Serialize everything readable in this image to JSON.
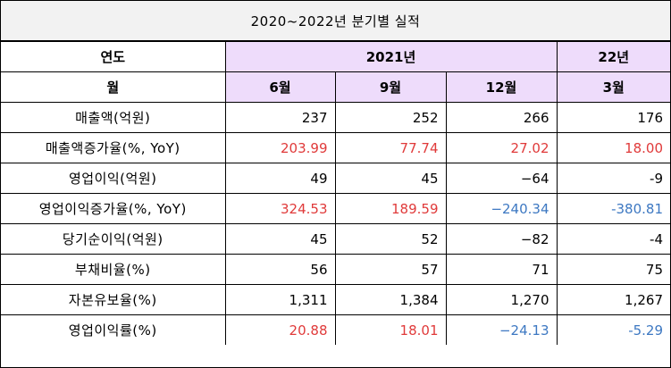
{
  "title": "2020~2022년 분기별 실적",
  "header": {
    "year_label": "연도",
    "year_2021": "2021년",
    "year_22": "22년",
    "month_label": "월",
    "months": [
      "6월",
      "9월",
      "12월",
      "3월"
    ]
  },
  "rows": [
    {
      "label": "매출액(억원)",
      "values": [
        "237",
        "252",
        "266",
        "176"
      ],
      "colors": [
        "black",
        "black",
        "black",
        "black"
      ]
    },
    {
      "label": "매출액증가율(%, YoY)",
      "values": [
        "203.99",
        "77.74",
        "27.02",
        "18.00"
      ],
      "colors": [
        "red",
        "red",
        "red",
        "red"
      ]
    },
    {
      "label": "영업이익(억원)",
      "values": [
        "49",
        "45",
        "−64",
        "-9"
      ],
      "colors": [
        "black",
        "black",
        "black",
        "black"
      ]
    },
    {
      "label": "영업이익증가율(%, YoY)",
      "values": [
        "324.53",
        "189.59",
        "−240.34",
        "-380.81"
      ],
      "colors": [
        "red",
        "red",
        "blue",
        "blue"
      ]
    },
    {
      "label": "당기순이익(억원)",
      "values": [
        "45",
        "52",
        "−82",
        "-4"
      ],
      "colors": [
        "black",
        "black",
        "black",
        "black"
      ]
    },
    {
      "label": "부채비율(%)",
      "values": [
        "56",
        "57",
        "71",
        "75"
      ],
      "colors": [
        "black",
        "black",
        "black",
        "black"
      ]
    },
    {
      "label": "자본유보율(%)",
      "values": [
        "1,311",
        "1,384",
        "1,270",
        "1,267"
      ],
      "colors": [
        "black",
        "black",
        "black",
        "black"
      ]
    },
    {
      "label": "영업이익률(%)",
      "values": [
        "20.88",
        "18.01",
        "−24.13",
        "-5.29"
      ],
      "colors": [
        "red",
        "red",
        "blue",
        "blue"
      ]
    }
  ],
  "colors": {
    "header_purple": "#eedcfb",
    "positive_red": "#e03a3a",
    "negative_blue": "#3d78c2",
    "title_bg": "#f2f2f2"
  }
}
